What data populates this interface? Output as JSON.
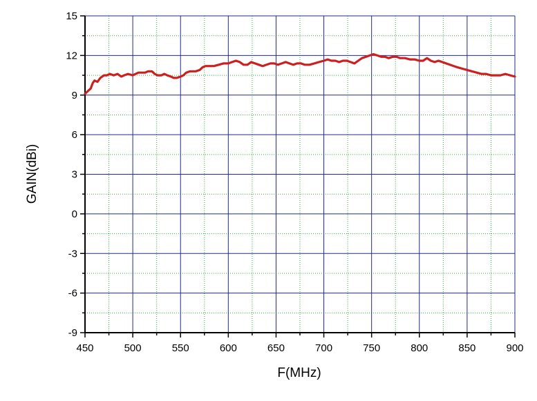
{
  "chart_data": {
    "type": "line",
    "title": "",
    "xlabel": "F(MHz)",
    "ylabel": "GAIN(dBi)",
    "xlim": [
      450,
      900
    ],
    "ylim": [
      -9,
      15
    ],
    "x_ticks": [
      450,
      500,
      550,
      600,
      650,
      700,
      750,
      800,
      850,
      900
    ],
    "x_tick_labels": [
      "450",
      "500",
      "550",
      "600",
      "650",
      "700",
      "750",
      "800",
      "850",
      "900"
    ],
    "y_ticks": [
      -9,
      -6,
      -3,
      0,
      3,
      6,
      9,
      12,
      15
    ],
    "y_tick_labels": [
      "-9",
      "-6",
      "-3",
      "0",
      "3",
      "6",
      "9",
      "12",
      "15"
    ],
    "grid": true,
    "colors": {
      "line": "#cc1f1f",
      "major_grid": "#1f2a8c",
      "minor_grid": "#33aa33",
      "axis": "#000000"
    },
    "series": [
      {
        "x": [
          450,
          453,
          456,
          458,
          460,
          463,
          466,
          470,
          473,
          476,
          480,
          484,
          488,
          491,
          495,
          500,
          503,
          506,
          510,
          513,
          516,
          520,
          523,
          526,
          530,
          533,
          536,
          540,
          543,
          546,
          550,
          553,
          556,
          560,
          563,
          566,
          570,
          573,
          576,
          580,
          585,
          590,
          595,
          600,
          604,
          608,
          612,
          616,
          620,
          624,
          628,
          632,
          636,
          640,
          644,
          648,
          652,
          656,
          660,
          664,
          668,
          672,
          676,
          680,
          685,
          690,
          695,
          700,
          704,
          708,
          712,
          716,
          720,
          724,
          728,
          732,
          736,
          740,
          744,
          748,
          752,
          756,
          760,
          764,
          768,
          772,
          776,
          780,
          785,
          790,
          795,
          800,
          804,
          808,
          812,
          816,
          820,
          824,
          828,
          832,
          836,
          840,
          845,
          850,
          855,
          860,
          865,
          870,
          875,
          880,
          885,
          890,
          895,
          900
        ],
        "values": [
          9.1,
          9.3,
          9.5,
          9.9,
          10.1,
          10.0,
          10.3,
          10.5,
          10.5,
          10.6,
          10.5,
          10.6,
          10.4,
          10.5,
          10.6,
          10.5,
          10.6,
          10.7,
          10.7,
          10.7,
          10.8,
          10.8,
          10.6,
          10.5,
          10.5,
          10.6,
          10.5,
          10.4,
          10.3,
          10.3,
          10.4,
          10.5,
          10.7,
          10.8,
          10.8,
          10.8,
          10.9,
          11.1,
          11.2,
          11.2,
          11.2,
          11.3,
          11.4,
          11.4,
          11.5,
          11.6,
          11.5,
          11.3,
          11.3,
          11.5,
          11.4,
          11.3,
          11.2,
          11.3,
          11.4,
          11.4,
          11.3,
          11.4,
          11.5,
          11.4,
          11.3,
          11.4,
          11.4,
          11.3,
          11.3,
          11.4,
          11.5,
          11.6,
          11.7,
          11.6,
          11.6,
          11.5,
          11.6,
          11.6,
          11.5,
          11.4,
          11.6,
          11.8,
          11.9,
          12.0,
          12.1,
          12.0,
          11.9,
          11.9,
          11.8,
          11.9,
          11.9,
          11.8,
          11.8,
          11.7,
          11.7,
          11.6,
          11.6,
          11.8,
          11.6,
          11.5,
          11.6,
          11.5,
          11.4,
          11.3,
          11.2,
          11.1,
          11.0,
          10.9,
          10.8,
          10.7,
          10.6,
          10.6,
          10.5,
          10.5,
          10.5,
          10.6,
          10.5,
          10.4
        ]
      }
    ]
  }
}
